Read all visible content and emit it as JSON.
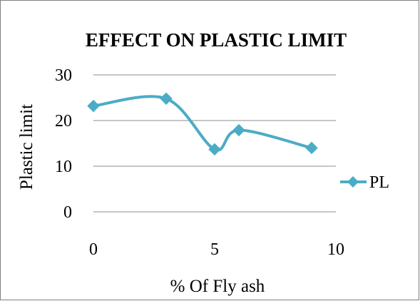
{
  "chart_data": {
    "type": "line",
    "title": "EFFECT ON PLASTIC LIMIT",
    "xlabel": "% Of Fly ash",
    "ylabel": "Plastic limit",
    "xlim": [
      0,
      10
    ],
    "ylim": [
      0,
      30
    ],
    "xticks": [
      "0",
      "5",
      "10"
    ],
    "yticks": [
      "0",
      "10",
      "20",
      "30"
    ],
    "grid": "horizontal",
    "legend_position": "right",
    "line_style": "smoothed",
    "series": [
      {
        "name": "PL",
        "color": "#4BACC6",
        "marker": "diamond",
        "x": [
          0,
          3,
          5,
          6,
          9
        ],
        "y": [
          23.2,
          24.8,
          13.7,
          17.9,
          14
        ]
      }
    ]
  }
}
